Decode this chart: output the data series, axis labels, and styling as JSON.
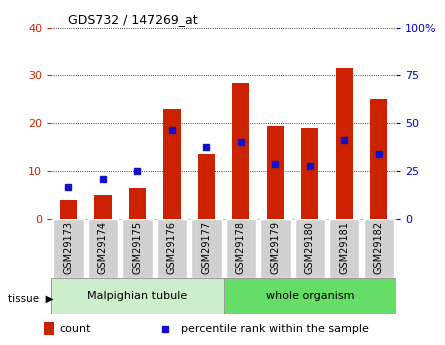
{
  "title": "GDS732 / 147269_at",
  "categories": [
    "GSM29173",
    "GSM29174",
    "GSM29175",
    "GSM29176",
    "GSM29177",
    "GSM29178",
    "GSM29179",
    "GSM29180",
    "GSM29181",
    "GSM29182"
  ],
  "count_values": [
    4.0,
    5.0,
    6.5,
    23.0,
    13.5,
    28.5,
    19.5,
    19.0,
    31.5,
    25.0
  ],
  "percentile_values": [
    16.5,
    21.0,
    25.0,
    46.5,
    37.5,
    40.0,
    29.0,
    27.5,
    41.5,
    34.0
  ],
  "bar_color": "#cc2200",
  "dot_color": "#1111cc",
  "ylim_left": [
    0,
    40
  ],
  "ylim_right": [
    0,
    100
  ],
  "yticks_left": [
    0,
    10,
    20,
    30,
    40
  ],
  "yticks_right": [
    0,
    25,
    50,
    75,
    100
  ],
  "ytick_labels_right": [
    "0",
    "25",
    "50",
    "75",
    "100%"
  ],
  "grid_color": "black",
  "tissue_color_malpighian": "#cceecc",
  "tissue_color_whole": "#66dd66",
  "tick_box_color": "#d0d0d0",
  "tick_box_edge": "#ffffff",
  "legend_count_label": "count",
  "legend_percentile_label": "percentile rank within the sample",
  "tissue_label": "tissue",
  "left_tick_color": "#cc2200",
  "right_tick_color": "#0000cc",
  "bar_width": 0.5,
  "n_malpighian": 5,
  "n_whole": 5
}
